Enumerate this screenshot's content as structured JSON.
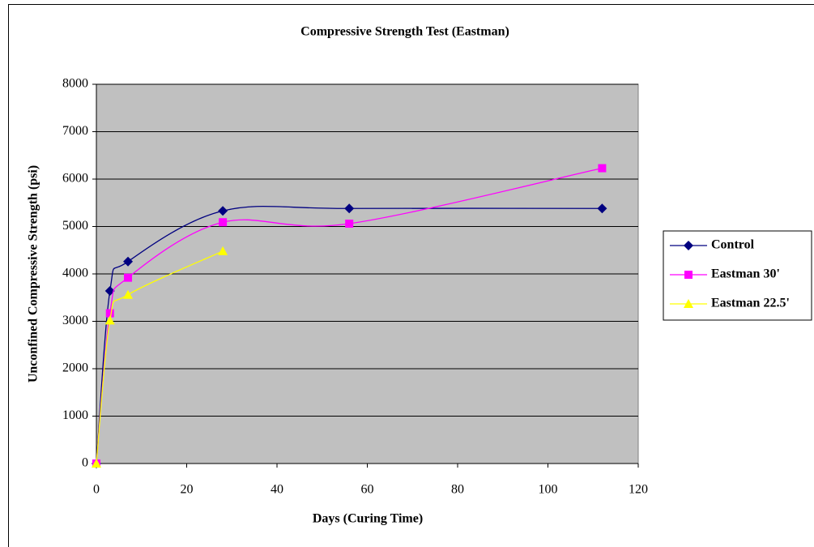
{
  "chart_data": {
    "type": "line",
    "title": "Compressive Strength Test (Eastman)",
    "x_label": "Days (Curing Time)",
    "y_label": "Unconfined Compressive Strength (psi)",
    "x": [
      0,
      3,
      7,
      28,
      56,
      112
    ],
    "series": [
      {
        "name": "Control",
        "color": "#000080",
        "marker": "diamond",
        "values": [
          0,
          3640,
          4260,
          5330,
          5380,
          5380
        ]
      },
      {
        "name": "Eastman 30'",
        "color": "#FF00FF",
        "marker": "square",
        "values": [
          0,
          3170,
          3920,
          5090,
          5060,
          6230
        ]
      },
      {
        "name": "Eastman 22.5'",
        "color": "#FFFF00",
        "marker": "triangle",
        "values": [
          0,
          3020,
          3560,
          4480,
          null,
          null
        ]
      }
    ],
    "xlim": [
      0,
      120
    ],
    "xticks": [
      0,
      20,
      40,
      60,
      80,
      100,
      120
    ],
    "ylim": [
      0,
      8000
    ],
    "yticks": [
      0,
      1000,
      2000,
      3000,
      4000,
      5000,
      6000,
      7000,
      8000
    ],
    "grid": true,
    "smooth": true,
    "legend": "right"
  }
}
